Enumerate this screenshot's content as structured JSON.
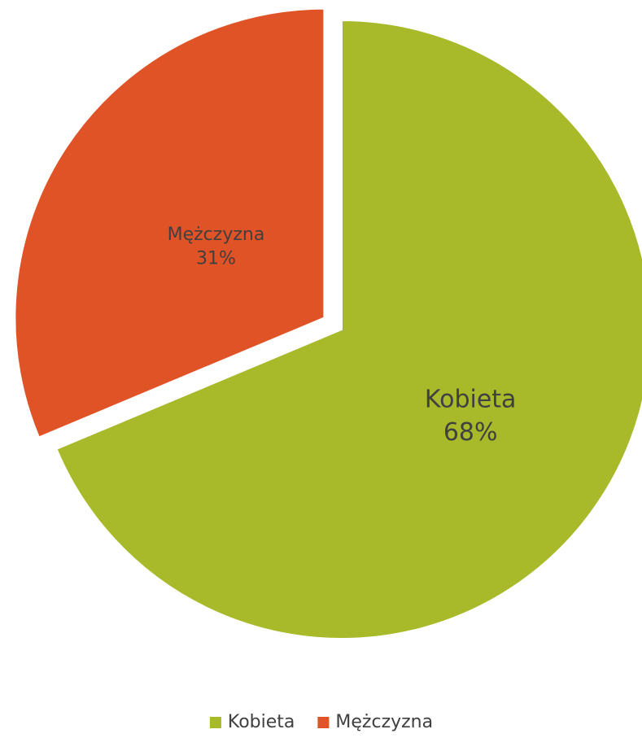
{
  "chart_data": {
    "type": "pie",
    "categories": [
      "Kobieta",
      "Mężczyzna"
    ],
    "values": [
      68,
      31
    ],
    "value_labels": [
      "68%",
      "31%"
    ],
    "colors": [
      "#a8b92a",
      "#e05327"
    ],
    "legend": "bottom"
  }
}
